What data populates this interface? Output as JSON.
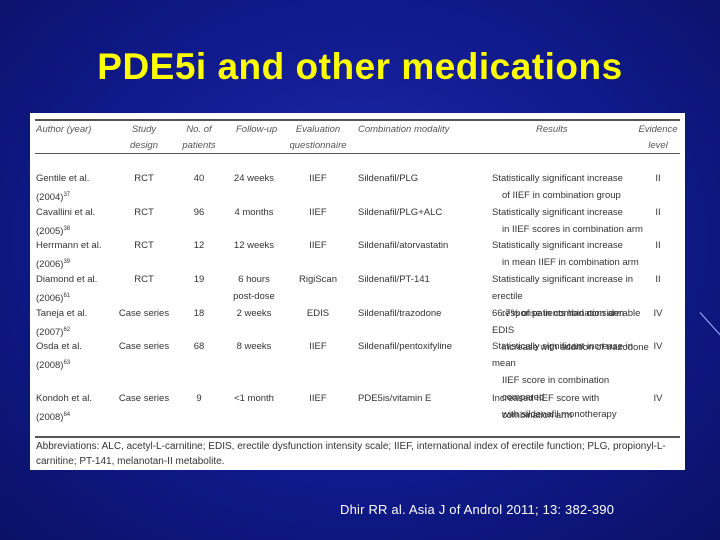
{
  "title": "PDE5i and other medications",
  "citation": "Dhir RR al. Asia J of Androl 2011; 13: 382-390",
  "table": {
    "headers": [
      {
        "l1": "Author (year)",
        "l2": ""
      },
      {
        "l1": "Study",
        "l2": "design"
      },
      {
        "l1": "No. of",
        "l2": "patients"
      },
      {
        "l1": "Follow-up",
        "l2": ""
      },
      {
        "l1": "Evaluation",
        "l2": "questionnaire"
      },
      {
        "l1": "Combination modality",
        "l2": ""
      },
      {
        "l1": "Results",
        "l2": ""
      },
      {
        "l1": "Evidence",
        "l2": "level"
      }
    ],
    "rows": [
      {
        "author1": "Gentile et al.",
        "author2": "(2004)",
        "ref": "37",
        "design": "RCT",
        "patients": "40",
        "followup1": "24 weeks",
        "followup2": "",
        "questionnaire": "IIEF",
        "modality": "Sildenafil/PLG",
        "results1": "Statistically significant increase",
        "results2": "of IIEF in combination group",
        "results3": "",
        "level": "II"
      },
      {
        "author1": "Cavallini et al.",
        "author2": "(2005)",
        "ref": "38",
        "design": "RCT",
        "patients": "96",
        "followup1": "4 months",
        "followup2": "",
        "questionnaire": "IIEF",
        "modality": "Sildenafil/PLG+ALC",
        "results1": "Statistically significant increase",
        "results2": "in IIEF scores in combination arm",
        "results3": "",
        "level": "II"
      },
      {
        "author1": "Herrmann et al.",
        "author2": "(2006)",
        "ref": "39",
        "design": "RCT",
        "patients": "12",
        "followup1": "12 weeks",
        "followup2": "",
        "questionnaire": "IIEF",
        "modality": "Sildenafil/atorvastatin",
        "results1": "Statistically significant increase",
        "results2": "in mean IIEF in combination arm",
        "results3": "",
        "level": "II"
      },
      {
        "author1": "Diamond et al.",
        "author2": "(2006)",
        "ref": "61",
        "design": "RCT",
        "patients": "19",
        "followup1": "6 hours",
        "followup2": "post-dose",
        "questionnaire": "RigiScan",
        "modality": "Sildenafil/PT-141",
        "results1": "Statistically significant increase in erectile",
        "results2": "response in combination arm",
        "results3": "",
        "level": "II"
      },
      {
        "author1": "Taneja et al.",
        "author2": "(2007)",
        "ref": "62",
        "design": "Case series",
        "patients": "18",
        "followup1": "2 weeks",
        "followup2": "",
        "questionnaire": "EDIS",
        "modality": "Sildenafil/trazodone",
        "results1": "66.7% of patients had considerable EDIS",
        "results2": "increase with addition of trazodone",
        "results3": "",
        "level": "IV"
      },
      {
        "author1": "Osda et al.",
        "author2": "(2008)",
        "ref": "63",
        "design": "Case series",
        "patients": "68",
        "followup1": "8 weeks",
        "followup2": "",
        "questionnaire": "IIEF",
        "modality": "Sildenafil/pentoxifyline",
        "results1": "Statistically significant increase in mean",
        "results2": "IIEF score in combination compared",
        "results3": "with sildenafil monotherapy",
        "level": "IV"
      },
      {
        "author1": "Kondoh et al.",
        "author2": "(2008)",
        "ref": "64",
        "design": "Case series",
        "patients": "9",
        "followup1": "<1 month",
        "followup2": "",
        "questionnaire": "IIEF",
        "modality": "PDE5is/vitamin E",
        "results1": "Increased IIEF score with",
        "results2": "combination arm",
        "results3": "",
        "level": "IV"
      }
    ],
    "abbreviations": "Abbreviations: ALC, acetyl-L-carnitine; EDIS, erectile dysfunction intensity scale; IIEF, international index of erectile function; PLG, propionyl-L-carnitine; PT-141, melanotan-II metabolite."
  }
}
